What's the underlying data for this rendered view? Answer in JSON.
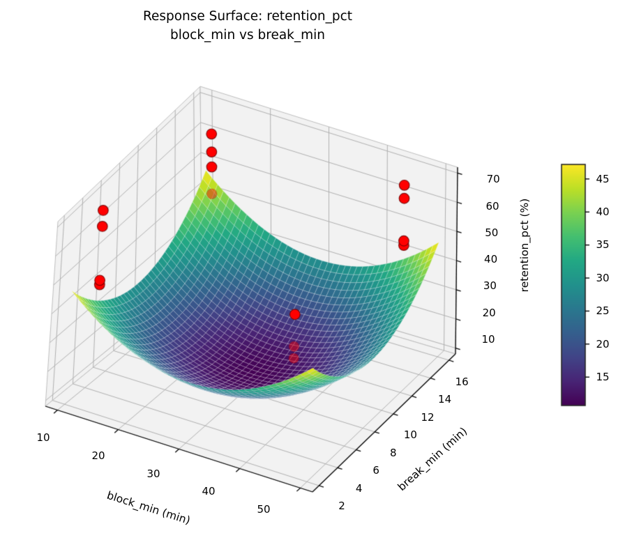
{
  "title": {
    "line1": "Response Surface: retention_pct",
    "line2": "block_min vs break_min"
  },
  "chart_data": {
    "type": "surface3d",
    "colormap": "viridis",
    "x_axis": {
      "label": "block_min (min)",
      "ticks": [
        10,
        20,
        30,
        40,
        50
      ],
      "range": [
        8,
        52
      ]
    },
    "y_axis": {
      "label": "break_min (min)",
      "ticks": [
        2,
        4,
        6,
        8,
        10,
        12,
        14,
        16
      ],
      "range": [
        1.3,
        16.7
      ]
    },
    "z_axis": {
      "label": "retention_pct (%)",
      "ticks": [
        10,
        20,
        30,
        40,
        50,
        60,
        70
      ],
      "range": [
        8,
        72
      ]
    },
    "surface": {
      "description": "bowl-shaped fitted quadratic response surface, minimum near center",
      "model": "z = z_min + ax*(x-x0)^2 + by*(y-y0)^2",
      "z_min": 10.7,
      "ax": 0.046,
      "by": 0.37,
      "x0": 30,
      "y0": 9,
      "x_range": [
        10,
        50
      ],
      "y_range": [
        2,
        16
      ],
      "grid_n": 40,
      "z_at_corners": 47.2
    },
    "colorbar": {
      "vmin": 10.7,
      "vmax": 47.2,
      "ticks": [
        15,
        20,
        25,
        30,
        35,
        40,
        45
      ]
    },
    "scatter": {
      "name": "observed data points",
      "color": "#ff0000",
      "points": [
        {
          "block_min": 11,
          "break_min": 16,
          "retention_pct": 60,
          "behind_surface": false
        },
        {
          "block_min": 11,
          "break_min": 16,
          "retention_pct": 54,
          "behind_surface": false
        },
        {
          "block_min": 11,
          "break_min": 16,
          "retention_pct": 49,
          "behind_surface": false
        },
        {
          "block_min": 11,
          "break_min": 16,
          "retention_pct": 40,
          "behind_surface": true
        },
        {
          "block_min": 10,
          "break_min": 5,
          "retention_pct": 66,
          "behind_surface": false
        },
        {
          "block_min": 10,
          "break_min": 5,
          "retention_pct": 60.5,
          "behind_surface": false
        },
        {
          "block_min": 10,
          "break_min": 5,
          "retention_pct": 42,
          "behind_surface": false
        },
        {
          "block_min": 10,
          "break_min": 5,
          "retention_pct": 40.5,
          "behind_surface": false
        },
        {
          "block_min": 44,
          "break_min": 16,
          "retention_pct": 63,
          "behind_surface": false
        },
        {
          "block_min": 44,
          "break_min": 16,
          "retention_pct": 58.5,
          "behind_surface": false
        },
        {
          "block_min": 44,
          "break_min": 16,
          "retention_pct": 44,
          "behind_surface": false
        },
        {
          "block_min": 44,
          "break_min": 16,
          "retention_pct": 42.5,
          "behind_surface": false
        },
        {
          "block_min": 35,
          "break_min": 10,
          "retention_pct": 31.5,
          "behind_surface": false
        },
        {
          "block_min": 35,
          "break_min": 10,
          "retention_pct": 20.5,
          "behind_surface": true
        },
        {
          "block_min": 35,
          "break_min": 10,
          "retention_pct": 16.5,
          "behind_surface": true
        }
      ]
    }
  }
}
